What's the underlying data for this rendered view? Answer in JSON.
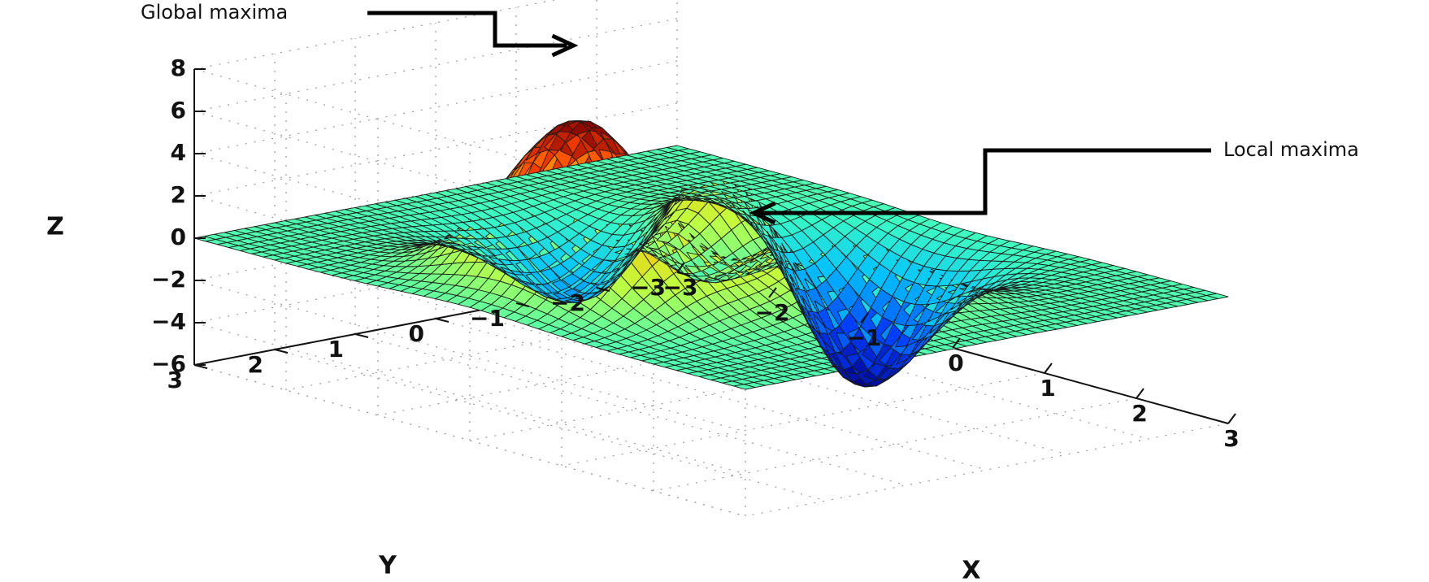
{
  "chart_data": {
    "type": "surface",
    "title": "",
    "xlabel": "X",
    "ylabel": "Y",
    "zlabel": "Z",
    "xlim": [
      -3,
      3
    ],
    "ylim": [
      -3,
      3
    ],
    "zlim": [
      -6,
      8
    ],
    "x_ticks": [
      "−3",
      "−2",
      "−1",
      "0",
      "1",
      "2",
      "3"
    ],
    "y_ticks": [
      "−3",
      "−2",
      "−1",
      "0",
      "1",
      "2",
      "3"
    ],
    "z_ticks": [
      "−6",
      "−4",
      "−2",
      "0",
      "2",
      "4",
      "6",
      "8"
    ],
    "grid": true,
    "colormap": [
      "#00008f",
      "#0040ff",
      "#00c0ff",
      "#40ffbf",
      "#bfff40",
      "#ffbf00",
      "#ff4000",
      "#800000"
    ],
    "mesh_line_color": "#1a1a1a",
    "surface": {
      "function": "peaks",
      "grid_points": 49,
      "max_z": 8.1,
      "min_z": -6.5
    },
    "annotations": [
      {
        "text": "Global maxima",
        "target": {
          "x": -0.01,
          "y": 1.58,
          "z": 8.1
        }
      },
      {
        "text": "Local maxima",
        "target": {
          "x": -0.46,
          "y": -0.63,
          "z": 3.8
        }
      }
    ]
  }
}
